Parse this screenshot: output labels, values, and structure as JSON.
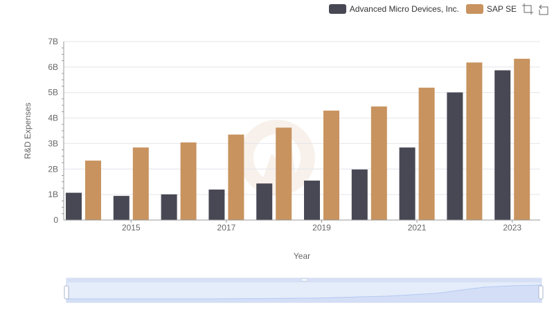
{
  "chart_data": {
    "type": "bar",
    "xlabel": "Year",
    "ylabel": "R&D Expenses",
    "x_tick_labels": [
      "2015",
      "2017",
      "2019",
      "2021",
      "2023"
    ],
    "y_tick_labels": [
      "0",
      "1B",
      "2B",
      "3B",
      "4B",
      "5B",
      "6B",
      "7B"
    ],
    "ylim": [
      0,
      7000000000
    ],
    "grid": true,
    "legend_position": "top-right",
    "categories": [
      2014,
      2015,
      2016,
      2017,
      2018,
      2019,
      2020,
      2021,
      2022,
      2023
    ],
    "series": [
      {
        "name": "Advanced Micro Devices, Inc.",
        "color": "#484855",
        "values": [
          1070000000,
          947000000,
          1008000000,
          1196000000,
          1434000000,
          1547000000,
          1983000000,
          2845000000,
          5005000000,
          5872000000
        ]
      },
      {
        "name": "SAP SE",
        "color": "#c8935f",
        "values": [
          2331000000,
          2845000000,
          3044000000,
          3352000000,
          3624000000,
          4292000000,
          4454000000,
          5190000000,
          6178000000,
          6324000000
        ]
      }
    ]
  },
  "legend": {
    "items": [
      {
        "label": "Advanced Micro Devices, Inc.",
        "color": "#484855"
      },
      {
        "label": "SAP SE",
        "color": "#c8935f"
      }
    ]
  },
  "toolbox": [
    "zoom-icon",
    "restore-icon"
  ],
  "datazoom": {
    "start_percent": 0,
    "end_percent": 100
  }
}
